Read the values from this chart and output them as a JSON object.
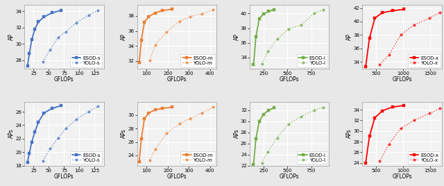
{
  "subplots": [
    {
      "row": 0,
      "col": 0,
      "color": "#4472c4",
      "esod_label": "ESOD-s",
      "yolo_label": "YOLO-s",
      "xlabel": "GFLOPs",
      "ylabel": "AP",
      "esod_x": [
        15,
        18,
        22,
        27,
        33,
        42,
        55,
        70
      ],
      "esod_y": [
        27.3,
        28.8,
        30.5,
        31.8,
        32.7,
        33.3,
        33.8,
        34.1
      ],
      "yolo_x": [
        40,
        52,
        65,
        78,
        95,
        115,
        130
      ],
      "yolo_y": [
        27.8,
        29.3,
        30.8,
        31.5,
        32.6,
        33.5,
        34.1
      ],
      "ylim": [
        27,
        34.8
      ],
      "yticks": [
        28,
        30,
        32,
        34
      ],
      "xlim": [
        10,
        140
      ],
      "xticks": [
        25,
        50,
        75,
        100,
        125
      ]
    },
    {
      "row": 0,
      "col": 1,
      "color": "#ed7d31",
      "esod_label": "ESOD-m",
      "yolo_label": "YOLO-m",
      "xlabel": "GFLOPs",
      "ylabel": "AP",
      "esod_x": [
        65,
        75,
        90,
        110,
        140,
        175,
        220
      ],
      "esod_y": [
        31.8,
        34.8,
        37.2,
        37.9,
        38.4,
        38.7,
        38.9
      ],
      "yolo_x": [
        115,
        140,
        195,
        255,
        305,
        360,
        415
      ],
      "yolo_y": [
        32.1,
        34.1,
        35.9,
        37.3,
        37.9,
        38.3,
        38.8
      ],
      "ylim": [
        31,
        39.5
      ],
      "yticks": [
        32,
        34,
        36,
        38
      ],
      "xlim": [
        55,
        430
      ],
      "xticks": [
        100,
        200,
        300,
        400
      ]
    },
    {
      "row": 0,
      "col": 2,
      "color": "#70ad47",
      "esod_label": "ESOD-l",
      "yolo_label": "YOLO-l",
      "xlabel": "GFLOPs",
      "ylabel": "AP",
      "esod_x": [
        140,
        165,
        200,
        245,
        300,
        360
      ],
      "esod_y": [
        33.0,
        36.8,
        39.3,
        39.9,
        40.3,
        40.5
      ],
      "yolo_x": [
        230,
        290,
        390,
        510,
        640,
        780,
        880
      ],
      "yolo_y": [
        33.1,
        34.8,
        36.5,
        37.9,
        38.4,
        40.0,
        40.5
      ],
      "ylim": [
        32.5,
        41.2
      ],
      "yticks": [
        34,
        36,
        38,
        40
      ],
      "xlim": [
        100,
        940
      ],
      "xticks": [
        250,
        500,
        750
      ]
    },
    {
      "row": 0,
      "col": 3,
      "color": "#ff0000",
      "esod_label": "ESOD-x",
      "yolo_label": "YOLO-x",
      "xlabel": "GFLOPs",
      "ylabel": "AP",
      "esod_x": [
        310,
        380,
        480,
        620,
        810,
        1020
      ],
      "esod_y": [
        33.3,
        37.5,
        40.5,
        41.3,
        41.6,
        41.8
      ],
      "yolo_x": [
        570,
        740,
        960,
        1210,
        1490,
        1680
      ],
      "yolo_y": [
        33.6,
        35.0,
        38.0,
        39.5,
        40.5,
        41.3
      ],
      "ylim": [
        33,
        42.5
      ],
      "yticks": [
        34,
        36,
        38,
        40,
        42
      ],
      "xlim": [
        250,
        1720
      ],
      "xticks": [
        500,
        1000,
        1500
      ]
    },
    {
      "row": 1,
      "col": 0,
      "color": "#4472c4",
      "esod_label": "ESOD-s",
      "yolo_label": "YOLO-s",
      "xlabel": "GFLOPs",
      "ylabel": "APs",
      "esod_x": [
        15,
        18,
        22,
        27,
        33,
        42,
        55,
        70
      ],
      "esod_y": [
        18.5,
        19.8,
        21.5,
        23.0,
        24.5,
        25.8,
        26.5,
        26.9
      ],
      "yolo_x": [
        40,
        52,
        65,
        78,
        95,
        115,
        130
      ],
      "yolo_y": [
        18.7,
        20.5,
        22.1,
        23.5,
        24.9,
        26.0,
        26.8
      ],
      "ylim": [
        18,
        27.5
      ],
      "yticks": [
        18,
        20,
        22,
        24,
        26
      ],
      "xlim": [
        10,
        140
      ],
      "xticks": [
        25,
        50,
        75,
        100,
        125
      ]
    },
    {
      "row": 1,
      "col": 1,
      "color": "#ed7d31",
      "esod_label": "ESOD-m",
      "yolo_label": "YOLO-m",
      "xlabel": "GFLOPs",
      "ylabel": "APs",
      "esod_x": [
        65,
        75,
        90,
        110,
        140,
        175,
        220
      ],
      "esod_y": [
        23.1,
        26.5,
        29.5,
        30.3,
        30.8,
        31.0,
        31.2
      ],
      "yolo_x": [
        115,
        140,
        195,
        255,
        305,
        360,
        415
      ],
      "yolo_y": [
        23.3,
        24.9,
        27.3,
        28.7,
        29.5,
        30.3,
        31.2
      ],
      "ylim": [
        22.5,
        32.0
      ],
      "yticks": [
        24,
        26,
        28,
        30
      ],
      "xlim": [
        55,
        430
      ],
      "xticks": [
        100,
        200,
        300,
        400
      ]
    },
    {
      "row": 1,
      "col": 2,
      "color": "#70ad47",
      "esod_label": "ESOD-l",
      "yolo_label": "YOLO-l",
      "xlabel": "GFLOPs",
      "ylabel": "APs",
      "esod_x": [
        140,
        165,
        200,
        245,
        300,
        360
      ],
      "esod_y": [
        22.2,
        26.8,
        30.0,
        31.2,
        32.0,
        32.4
      ],
      "yolo_x": [
        230,
        290,
        390,
        510,
        640,
        780,
        880
      ],
      "yolo_y": [
        22.5,
        24.5,
        27.0,
        29.5,
        30.8,
        32.0,
        32.5
      ],
      "ylim": [
        22,
        33.5
      ],
      "yticks": [
        22,
        24,
        26,
        28,
        30,
        32
      ],
      "xlim": [
        100,
        940
      ],
      "xticks": [
        250,
        500,
        750
      ]
    },
    {
      "row": 1,
      "col": 3,
      "color": "#ff0000",
      "esod_label": "ESOD-x",
      "yolo_label": "YOLO-x",
      "xlabel": "GFLOPs",
      "ylabel": "APs",
      "esod_x": [
        310,
        380,
        480,
        620,
        810,
        1020
      ],
      "esod_y": [
        24.0,
        29.0,
        32.5,
        33.8,
        34.5,
        34.8
      ],
      "yolo_x": [
        570,
        740,
        960,
        1210,
        1490,
        1680
      ],
      "yolo_y": [
        24.3,
        27.5,
        30.5,
        32.0,
        33.3,
        34.2
      ],
      "ylim": [
        23.5,
        35.5
      ],
      "yticks": [
        24,
        26,
        28,
        30,
        32,
        34
      ],
      "xlim": [
        250,
        1720
      ],
      "xticks": [
        500,
        1000,
        1500
      ]
    }
  ],
  "fig_bg": "#e8e8e8",
  "axes_bg": "#f2f2f2",
  "grid_color": "#ffffff",
  "fontsize_label": 5.5,
  "fontsize_tick": 5.0,
  "fontsize_legend": 5.0,
  "linewidth_esod": 1.3,
  "linewidth_yolo": 1.0,
  "marker_size_esod": 3.0,
  "marker_size_yolo": 2.5
}
